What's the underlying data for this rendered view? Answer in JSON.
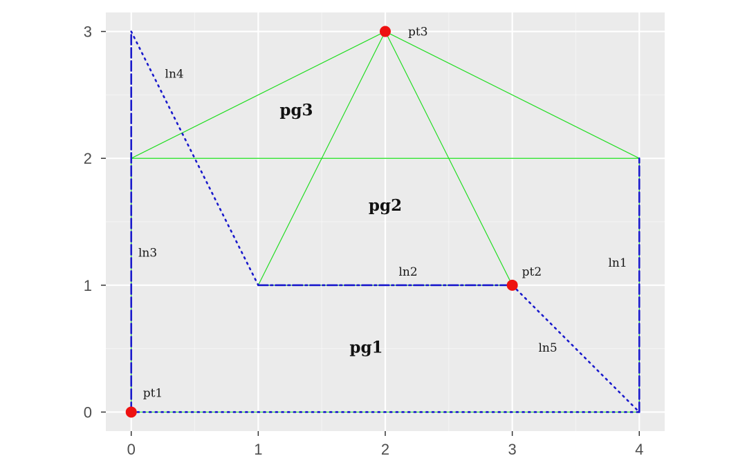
{
  "chart_data": {
    "type": "scatter",
    "title": "",
    "xlabel": "",
    "ylabel": "",
    "xlim": [
      -0.2,
      4.2
    ],
    "ylim": [
      -0.15,
      3.15
    ],
    "x_ticks": [
      0,
      1,
      2,
      3,
      4
    ],
    "y_ticks": [
      0,
      1,
      2,
      3
    ],
    "x_tick_labels": [
      "0",
      "1",
      "2",
      "3",
      "4"
    ],
    "y_tick_labels": [
      "0",
      "1",
      "2",
      "3"
    ],
    "grid": true,
    "colors": {
      "panel": "#ebebeb",
      "grid": "#ffffff",
      "point": "#ee1111",
      "polygon": "#22dd22",
      "line": "#1a1acc"
    },
    "points": [
      {
        "label": "pt1",
        "x": 0,
        "y": 0
      },
      {
        "label": "pt2",
        "x": 3,
        "y": 1
      },
      {
        "label": "pt3",
        "x": 2,
        "y": 3
      }
    ],
    "polygons": [
      {
        "label": "pg1",
        "coords": [
          [
            0,
            0
          ],
          [
            4,
            0
          ],
          [
            4,
            2
          ],
          [
            0,
            2
          ]
        ],
        "label_at": [
          1.85,
          0.5
        ]
      },
      {
        "label": "pg2",
        "coords": [
          [
            1,
            1
          ],
          [
            3,
            1
          ],
          [
            2,
            3
          ]
        ],
        "label_at": [
          2.0,
          1.62
        ]
      },
      {
        "label": "pg3",
        "coords": [
          [
            0,
            2
          ],
          [
            4,
            2
          ],
          [
            2,
            3
          ]
        ],
        "label_at": [
          1.3,
          2.37
        ]
      }
    ],
    "lines": [
      {
        "label": "ln1",
        "coords": [
          [
            4,
            0
          ],
          [
            4,
            2
          ]
        ],
        "dash": "dashed",
        "label_at": [
          3.83,
          1.17
        ]
      },
      {
        "label": "ln2",
        "coords": [
          [
            1,
            1
          ],
          [
            3,
            1
          ]
        ],
        "dash": "dashdot",
        "label_at": [
          2.18,
          1.1
        ]
      },
      {
        "label": "ln3",
        "coords": [
          [
            0,
            0
          ],
          [
            0,
            3
          ]
        ],
        "dash": "dashed",
        "label_at": [
          0.13,
          1.25
        ]
      },
      {
        "label": "ln4",
        "coords": [
          [
            0,
            3
          ],
          [
            1,
            1
          ]
        ],
        "dash": "dotted",
        "label_at": [
          0.34,
          2.66
        ]
      },
      {
        "label": "ln5",
        "coords": [
          [
            3,
            1
          ],
          [
            4,
            0
          ],
          [
            0,
            0
          ]
        ],
        "dash": "dotted",
        "label_at": [
          3.28,
          0.5
        ]
      }
    ]
  }
}
